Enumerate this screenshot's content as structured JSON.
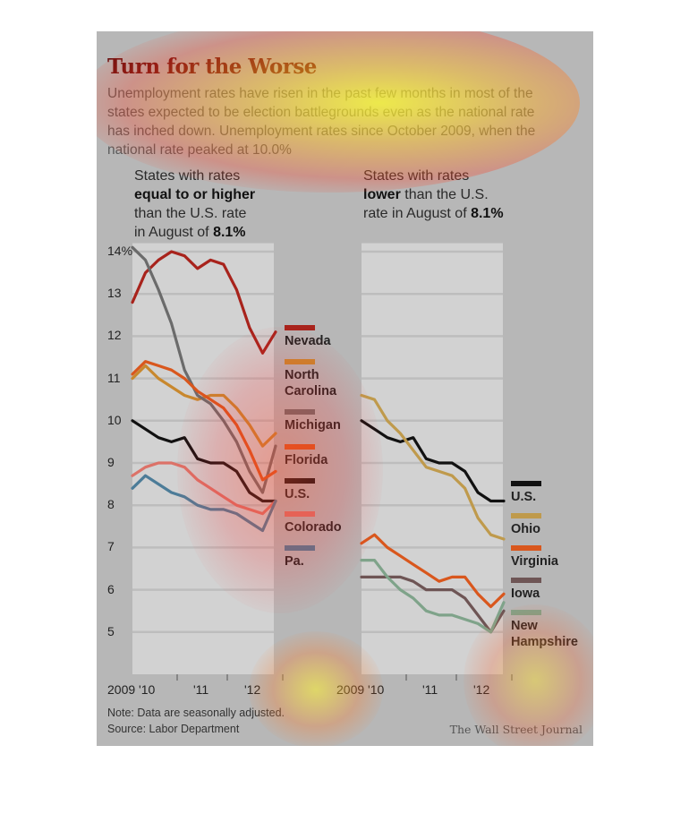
{
  "header": {
    "title": "Turn for the Worse",
    "subtitle": "Unemployment rates have risen in the past few months in most of the states expected to be election battlegrounds even as the national rate has inched down. Unemployment rates since October 2009, when the national rate peaked at 10.0%"
  },
  "panels": {
    "left_title": {
      "l1": "States with rates",
      "l2": "equal to or higher",
      "l3": "than the U.S. rate",
      "l4a": "in August of ",
      "l4b": "8.1%"
    },
    "right_title": {
      "l1": "States with rates",
      "l2a": "lower",
      "l2b": " than the U.S.",
      "l3a": "rate in August of ",
      "l3b": "8.1%"
    }
  },
  "axis": {
    "y_labels": [
      "14%",
      "13",
      "12",
      "11",
      "10",
      "9",
      "8",
      "7",
      "6",
      "5"
    ],
    "x_labels_left": [
      "2009 '10",
      "'11",
      "'12"
    ],
    "x_labels_right": [
      "2009 '10",
      "'11",
      "'12"
    ]
  },
  "footer": {
    "note": "Note: Data are seasonally adjusted.",
    "source": "Source: Labor Department",
    "credit": "The Wall Street Journal"
  },
  "chart_data": [
    {
      "type": "line",
      "title": "States with rates equal to or higher than the U.S. rate in August of 8.1%",
      "x": [
        "2009-10",
        "2010-01",
        "2010-04",
        "2010-07",
        "2010-10",
        "2011-01",
        "2011-04",
        "2011-07",
        "2011-10",
        "2012-01",
        "2012-04",
        "2012-08"
      ],
      "ylim": [
        4,
        14.2
      ],
      "series": [
        {
          "name": "Nevada",
          "color": "#a8231c",
          "values": [
            12.8,
            13.5,
            13.8,
            14.0,
            13.9,
            13.6,
            13.8,
            13.7,
            13.1,
            12.2,
            11.6,
            12.1
          ]
        },
        {
          "name": "North Carolina",
          "color": "#c8882e",
          "values": [
            11.0,
            11.3,
            11.0,
            10.8,
            10.6,
            10.5,
            10.6,
            10.6,
            10.3,
            9.9,
            9.4,
            9.7
          ]
        },
        {
          "name": "Michigan",
          "color": "#6b6b6b",
          "values": [
            14.1,
            13.8,
            13.1,
            12.3,
            11.2,
            10.6,
            10.4,
            10.0,
            9.5,
            8.8,
            8.3,
            9.4
          ]
        },
        {
          "name": "Florida",
          "color": "#d9571d",
          "values": [
            11.1,
            11.4,
            11.3,
            11.2,
            11.0,
            10.7,
            10.5,
            10.3,
            9.9,
            9.3,
            8.6,
            8.8
          ]
        },
        {
          "name": "U.S.",
          "color": "#111111",
          "values": [
            10.0,
            9.8,
            9.6,
            9.5,
            9.6,
            9.1,
            9.0,
            9.0,
            8.8,
            8.3,
            8.1,
            8.1
          ]
        },
        {
          "name": "Colorado",
          "color": "#dc7268",
          "values": [
            8.7,
            8.9,
            9.0,
            9.0,
            8.9,
            8.6,
            8.4,
            8.2,
            8.0,
            7.9,
            7.8,
            8.1
          ]
        },
        {
          "name": "Pa.",
          "color": "#4c7c98",
          "values": [
            8.4,
            8.7,
            8.5,
            8.3,
            8.2,
            8.0,
            7.9,
            7.9,
            7.8,
            7.6,
            7.4,
            8.1
          ]
        }
      ]
    },
    {
      "type": "line",
      "title": "States with rates lower than the U.S. rate in August of 8.1%",
      "x": [
        "2009-10",
        "2010-01",
        "2010-04",
        "2010-07",
        "2010-10",
        "2011-01",
        "2011-04",
        "2011-07",
        "2011-10",
        "2012-01",
        "2012-04",
        "2012-08"
      ],
      "ylim": [
        4,
        14.2
      ],
      "series": [
        {
          "name": "U.S.",
          "color": "#111111",
          "values": [
            10.0,
            9.8,
            9.6,
            9.5,
            9.6,
            9.1,
            9.0,
            9.0,
            8.8,
            8.3,
            8.1,
            8.1
          ]
        },
        {
          "name": "Ohio",
          "color": "#bf9a4c",
          "values": [
            10.6,
            10.5,
            10.0,
            9.7,
            9.3,
            8.9,
            8.8,
            8.7,
            8.4,
            7.7,
            7.3,
            7.2
          ]
        },
        {
          "name": "Virginia",
          "color": "#d9571d",
          "values": [
            7.1,
            7.3,
            7.0,
            6.8,
            6.6,
            6.4,
            6.2,
            6.3,
            6.3,
            5.9,
            5.6,
            5.9
          ]
        },
        {
          "name": "Iowa",
          "color": "#6e5555",
          "values": [
            6.3,
            6.3,
            6.3,
            6.3,
            6.2,
            6.0,
            6.0,
            6.0,
            5.8,
            5.4,
            5.0,
            5.5
          ]
        },
        {
          "name": "New Hampshire",
          "color": "#7fa38a",
          "values": [
            6.7,
            6.7,
            6.3,
            6.0,
            5.8,
            5.5,
            5.4,
            5.4,
            5.3,
            5.2,
            5.0,
            5.7
          ]
        }
      ]
    }
  ]
}
